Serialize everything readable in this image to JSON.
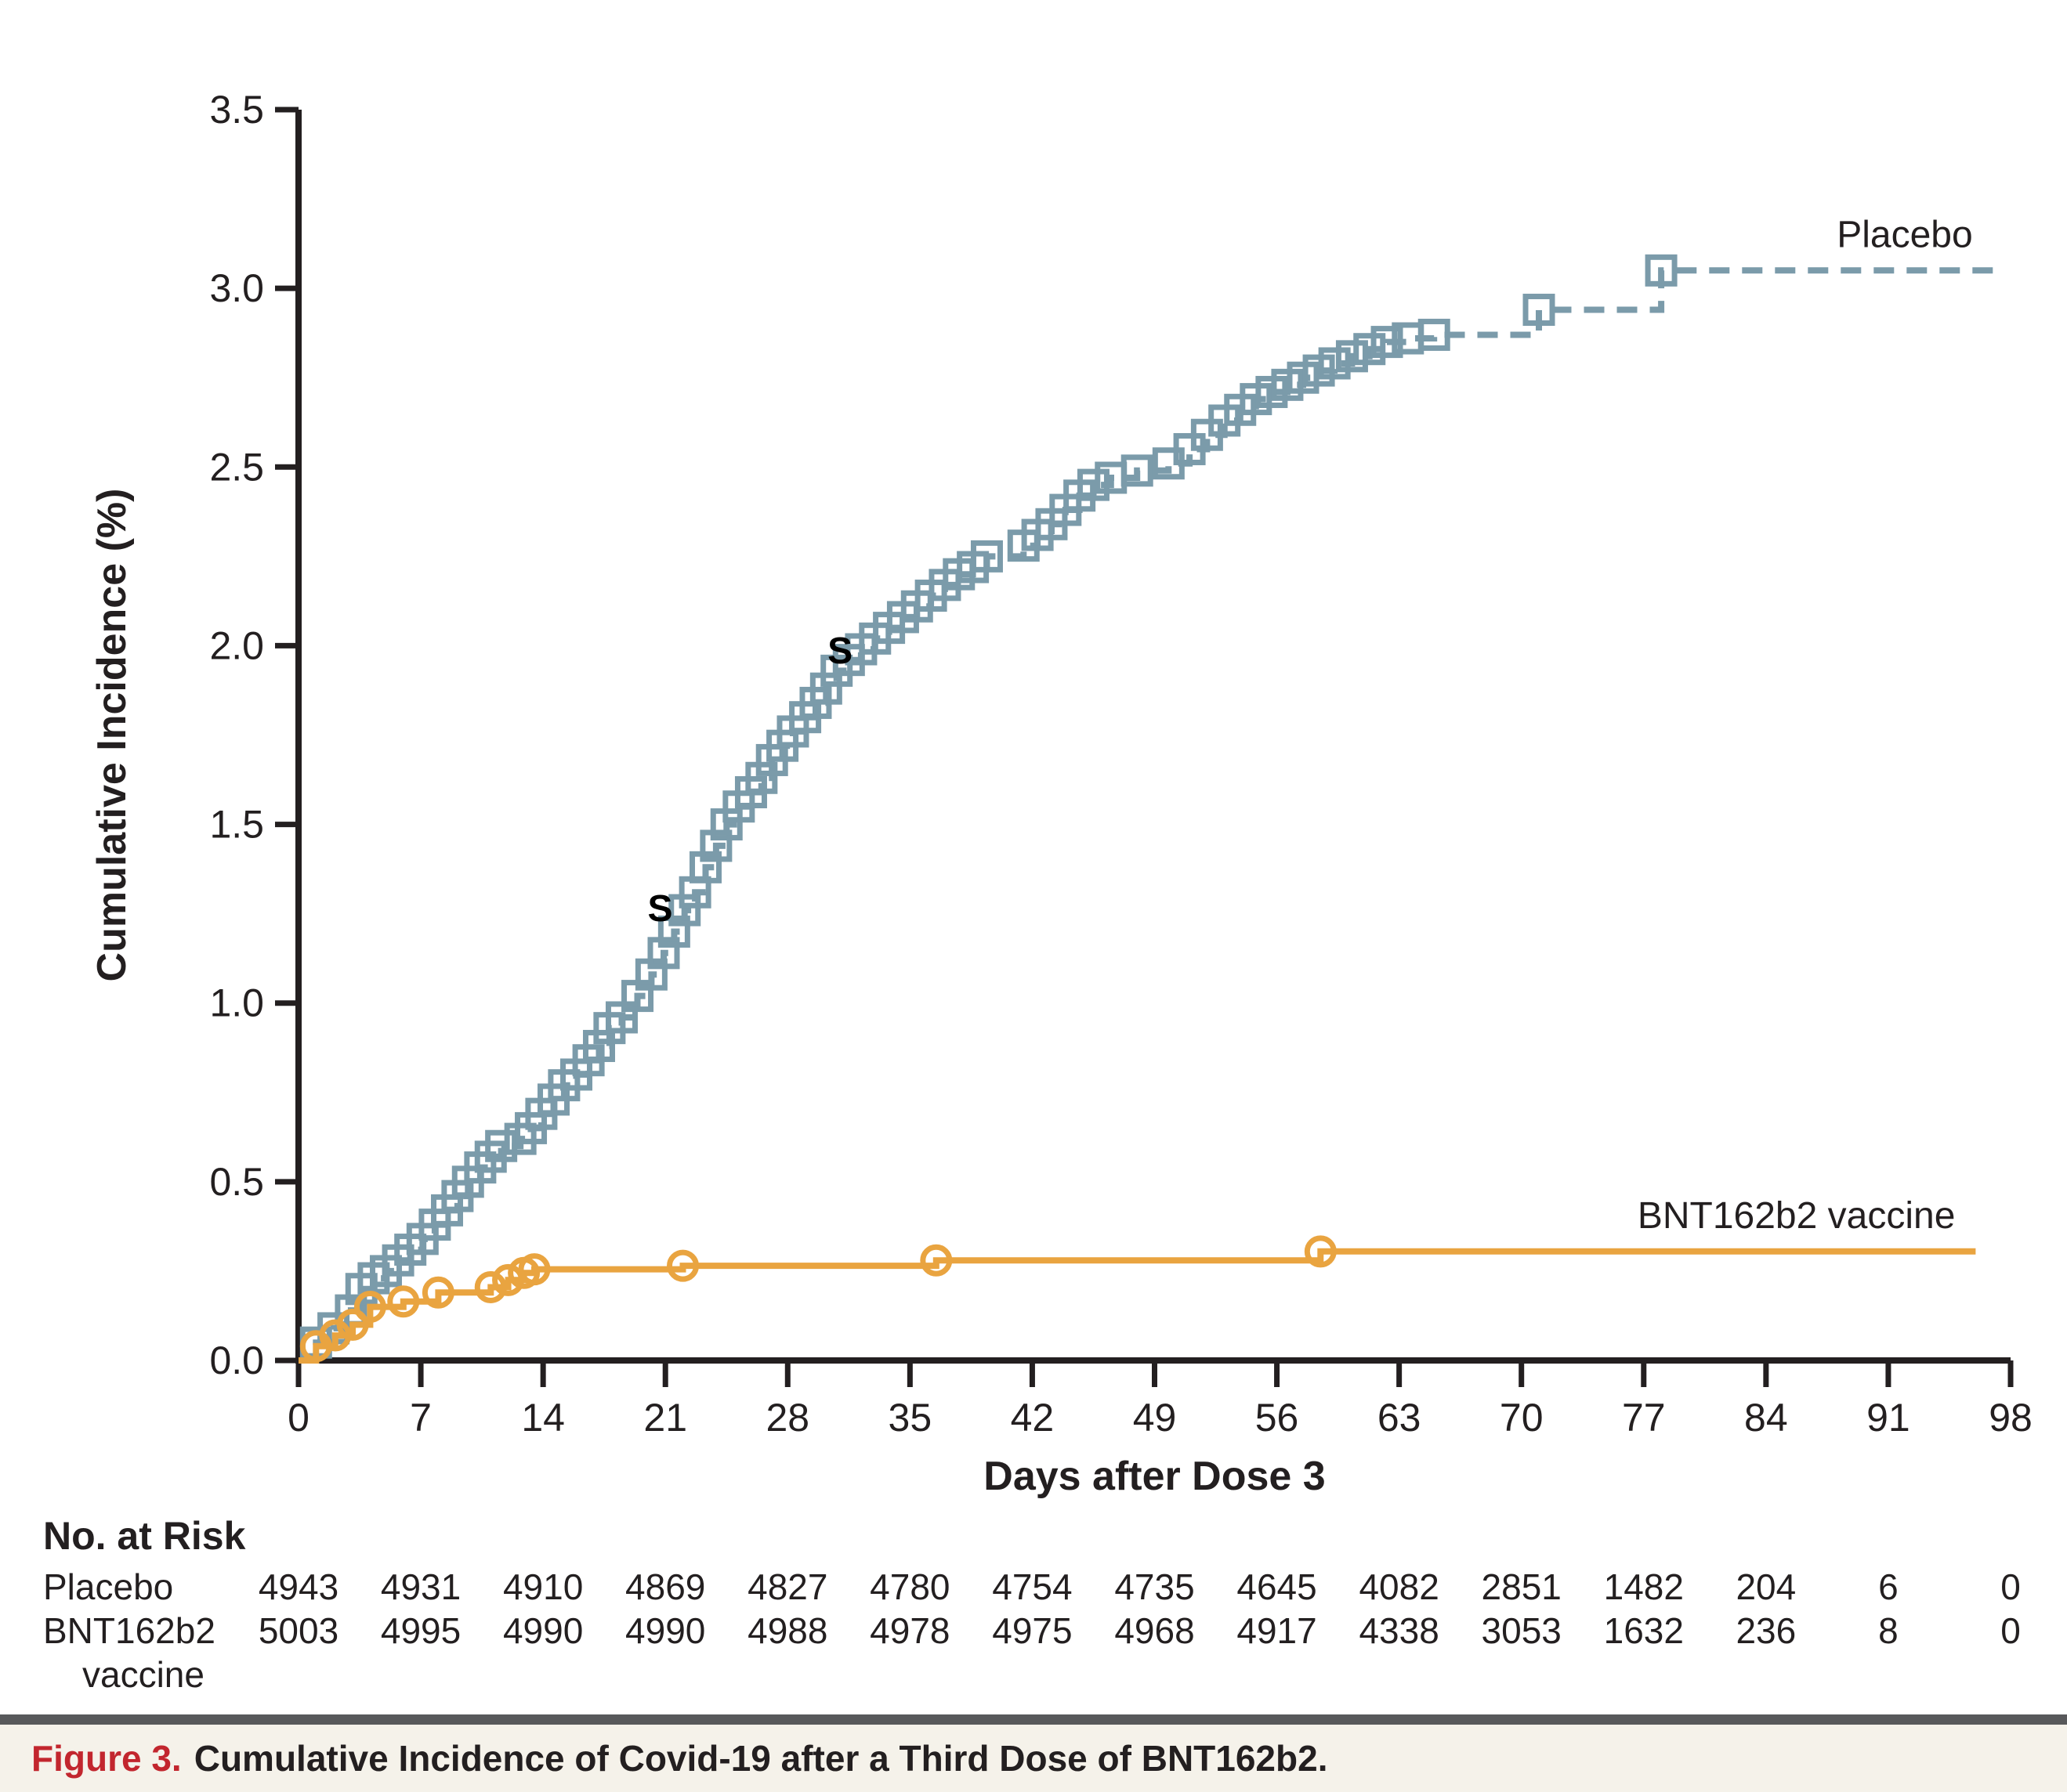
{
  "figure": {
    "caption_label": "Figure 3.",
    "caption_text": "Cumulative Incidence of Covid-19 after a Third Dose of BNT162b2."
  },
  "colors": {
    "placebo": "#7B9BAA",
    "vaccine": "#E9A440",
    "ink": "#231F20",
    "caption_red": "#C2262E",
    "rule_gray": "#58595B",
    "band_bg": "#F5F2EA"
  },
  "chart_data": {
    "type": "line",
    "subtype": "kaplan-meier-step",
    "title": "",
    "xlabel": "Days after Dose 3",
    "ylabel": "Cumulative Incidence (%)",
    "xlim": [
      0,
      98
    ],
    "ylim": [
      0,
      3.5
    ],
    "xticks": [
      0,
      7,
      14,
      21,
      28,
      35,
      42,
      49,
      56,
      63,
      70,
      77,
      84,
      91,
      98
    ],
    "ytick_labels": [
      "0.0",
      "0.5",
      "1.0",
      "1.5",
      "2.0",
      "2.5",
      "3.0",
      "3.5"
    ],
    "grid": false,
    "legend_position": "inline-right",
    "series": [
      {
        "name": "Placebo",
        "color": "#7B9BAA",
        "line_style": "dashed",
        "marker": "square",
        "end_day": 97,
        "points": [
          [
            1,
            0.05
          ],
          [
            2,
            0.09
          ],
          [
            3,
            0.14
          ],
          [
            3.6,
            0.2
          ],
          [
            4.3,
            0.23
          ],
          [
            5,
            0.25
          ],
          [
            5.7,
            0.28
          ],
          [
            6.4,
            0.31
          ],
          [
            7.1,
            0.34
          ],
          [
            7.8,
            0.38
          ],
          [
            8.5,
            0.42
          ],
          [
            9.1,
            0.46
          ],
          [
            9.7,
            0.5
          ],
          [
            10.4,
            0.54
          ],
          [
            11,
            0.57
          ],
          [
            11.6,
            0.6
          ],
          [
            12.7,
            0.62
          ],
          [
            13.3,
            0.65
          ],
          [
            13.9,
            0.69
          ],
          [
            14.6,
            0.73
          ],
          [
            15.2,
            0.77
          ],
          [
            15.9,
            0.8
          ],
          [
            16.6,
            0.84
          ],
          [
            17.2,
            0.88
          ],
          [
            17.8,
            0.93
          ],
          [
            18.5,
            0.96
          ],
          [
            19.4,
            1.02
          ],
          [
            20.2,
            1.08
          ],
          [
            20.9,
            1.14
          ],
          [
            21.5,
            1.2
          ],
          [
            22.1,
            1.26
          ],
          [
            22.7,
            1.31
          ],
          [
            23.3,
            1.38
          ],
          [
            23.9,
            1.44
          ],
          [
            24.5,
            1.5
          ],
          [
            25.2,
            1.55
          ],
          [
            25.9,
            1.59
          ],
          [
            26.5,
            1.63
          ],
          [
            27.1,
            1.68
          ],
          [
            27.7,
            1.72
          ],
          [
            28.3,
            1.76
          ],
          [
            29,
            1.8
          ],
          [
            29.6,
            1.84
          ],
          [
            30.2,
            1.88
          ],
          [
            30.8,
            1.93
          ],
          [
            31.5,
            1.96
          ],
          [
            32.2,
            1.99
          ],
          [
            33,
            2.02
          ],
          [
            33.8,
            2.05
          ],
          [
            34.6,
            2.08
          ],
          [
            35.4,
            2.11
          ],
          [
            36.2,
            2.14
          ],
          [
            37,
            2.17
          ],
          [
            37.8,
            2.2
          ],
          [
            38.6,
            2.22
          ],
          [
            39.4,
            2.25
          ],
          [
            41.5,
            2.28
          ],
          [
            42.3,
            2.31
          ],
          [
            43.1,
            2.34
          ],
          [
            43.9,
            2.38
          ],
          [
            44.7,
            2.42
          ],
          [
            45.5,
            2.45
          ],
          [
            46.5,
            2.47
          ],
          [
            48,
            2.49
          ],
          [
            49.8,
            2.51
          ],
          [
            51,
            2.55
          ],
          [
            52,
            2.59
          ],
          [
            53,
            2.63
          ],
          [
            53.9,
            2.66
          ],
          [
            54.8,
            2.69
          ],
          [
            55.7,
            2.71
          ],
          [
            56.6,
            2.73
          ],
          [
            57.5,
            2.75
          ],
          [
            58.4,
            2.77
          ],
          [
            59.3,
            2.79
          ],
          [
            60.3,
            2.81
          ],
          [
            61.3,
            2.83
          ],
          [
            62.3,
            2.85
          ],
          [
            63.5,
            2.86
          ],
          [
            65,
            2.87
          ],
          [
            71,
            2.94
          ],
          [
            78,
            3.05
          ]
        ]
      },
      {
        "name": "BNT162b2 vaccine",
        "color": "#E9A440",
        "line_style": "solid",
        "marker": "circle",
        "end_day": 96,
        "points": [
          [
            1,
            0.04
          ],
          [
            2.1,
            0.07
          ],
          [
            3.1,
            0.1
          ],
          [
            4.1,
            0.15
          ],
          [
            6,
            0.165
          ],
          [
            8,
            0.19
          ],
          [
            11,
            0.205
          ],
          [
            12,
            0.225
          ],
          [
            12.9,
            0.245
          ],
          [
            13.5,
            0.255
          ],
          [
            22,
            0.265
          ],
          [
            36.5,
            0.28
          ],
          [
            58.5,
            0.305
          ]
        ]
      }
    ],
    "annotations": [
      {
        "text": "S",
        "day": 20.7,
        "value": 1.23
      },
      {
        "text": "S",
        "day": 31.0,
        "value": 1.95
      }
    ]
  },
  "risk_table": {
    "title": "No. at Risk",
    "days": [
      0,
      7,
      14,
      21,
      28,
      35,
      42,
      49,
      56,
      63,
      70,
      77,
      84,
      91,
      98
    ],
    "rows": [
      {
        "label": "Placebo",
        "label2": "",
        "values": [
          4943,
          4931,
          4910,
          4869,
          4827,
          4780,
          4754,
          4735,
          4645,
          4082,
          2851,
          1482,
          204,
          6,
          0
        ]
      },
      {
        "label": "BNT162b2",
        "label2": "vaccine",
        "values": [
          5003,
          4995,
          4990,
          4990,
          4988,
          4978,
          4975,
          4968,
          4917,
          4338,
          3053,
          1632,
          236,
          8,
          0
        ]
      }
    ]
  }
}
